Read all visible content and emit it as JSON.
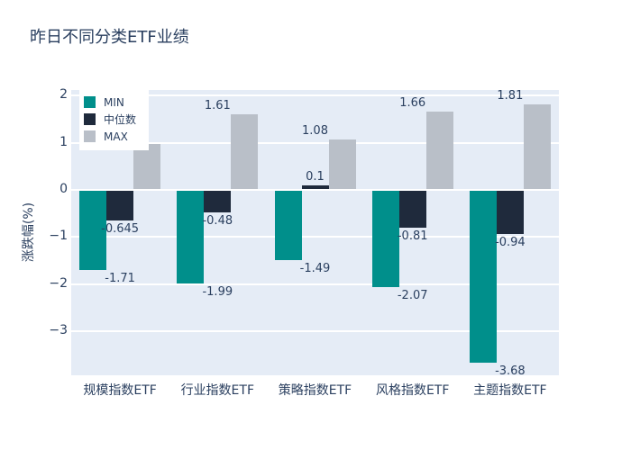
{
  "title": "昨日不同分类ETF业绩",
  "chart_data": {
    "type": "bar",
    "title": "昨日不同分类ETF业绩",
    "categories": [
      "规模指数ETF",
      "行业指数ETF",
      "策略指数ETF",
      "风格指数ETF",
      "主题指数ETF"
    ],
    "series": [
      {
        "name": "MIN",
        "color": "#008f8b",
        "values": [
          -1.71,
          -1.99,
          -1.49,
          -2.07,
          -3.68
        ]
      },
      {
        "name": "中位数",
        "color": "#1f2a3c",
        "values": [
          -0.645,
          -0.48,
          0.1,
          -0.81,
          -0.94
        ]
      },
      {
        "name": "MAX",
        "color": "#b9bfc8",
        "values": [
          0.97,
          1.61,
          1.08,
          1.66,
          1.81
        ]
      }
    ],
    "xlabel": "",
    "ylabel": "涨跌幅(%)",
    "yticks": [
      {
        "value": 2,
        "label": "2"
      },
      {
        "value": 1,
        "label": "1"
      },
      {
        "value": 0,
        "label": "0"
      },
      {
        "value": -1,
        "label": "−1"
      },
      {
        "value": -2,
        "label": "−2"
      },
      {
        "value": -3,
        "label": "−3"
      }
    ],
    "ylim": [
      -3.94,
      2.12
    ],
    "grid": true,
    "legend_position": "top-left",
    "plot_bg_color": "#e5ecf6",
    "paper_bg_color": "#ffffff",
    "text_color": "#2a3f5f"
  }
}
